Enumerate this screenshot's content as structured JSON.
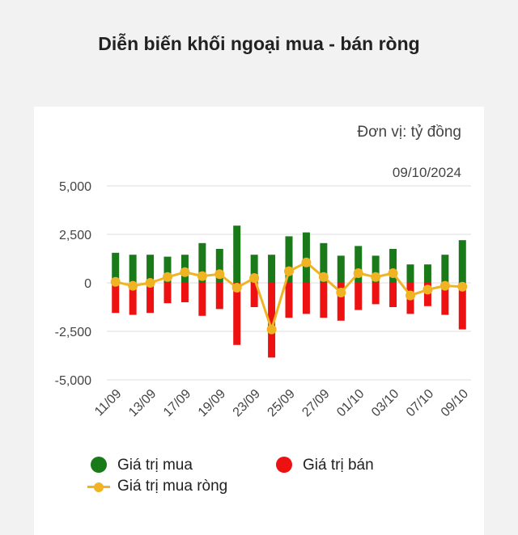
{
  "chart_data": {
    "type": "bar",
    "title": "Diễn biến khối ngoại mua - bán ròng",
    "unit_label": "Đơn vị: tỷ đồng",
    "date_label": "09/10/2024",
    "ylim": [
      -5000,
      5000
    ],
    "yticks": [
      5000,
      2500,
      0,
      -2500,
      -5000
    ],
    "ytick_labels": [
      "5,000",
      "2,500",
      "0",
      "-2,500",
      "-5,000"
    ],
    "x_tick_labels": [
      "11/09",
      "13/09",
      "17/09",
      "19/09",
      "23/09",
      "25/09",
      "27/09",
      "01/10",
      "03/10",
      "07/10",
      "09/10"
    ],
    "grid": true,
    "legend_position": "bottom",
    "series": [
      {
        "name": "Giá trị mua",
        "color": "#1a7a1a",
        "values": [
          1550,
          1450,
          1450,
          1350,
          1450,
          2050,
          1750,
          2950,
          1450,
          1450,
          2400,
          2600,
          2050,
          1400,
          1900,
          1400,
          1750,
          950,
          950,
          1450,
          2200
        ]
      },
      {
        "name": "Giá trị bán",
        "color": "#ee1111",
        "values": [
          -1550,
          -1650,
          -1550,
          -1050,
          -1000,
          -1700,
          -1350,
          -3200,
          -1250,
          -3850,
          -1800,
          -1600,
          -1800,
          -1950,
          -1400,
          -1100,
          -1250,
          -1600,
          -1200,
          -1650,
          -2400
        ]
      },
      {
        "name": "Giá trị mua ròng",
        "color": "#f0b323",
        "values": [
          50,
          -150,
          0,
          300,
          550,
          350,
          450,
          -250,
          250,
          -2400,
          600,
          1050,
          300,
          -500,
          500,
          300,
          500,
          -650,
          -350,
          -150,
          -200
        ]
      }
    ]
  }
}
